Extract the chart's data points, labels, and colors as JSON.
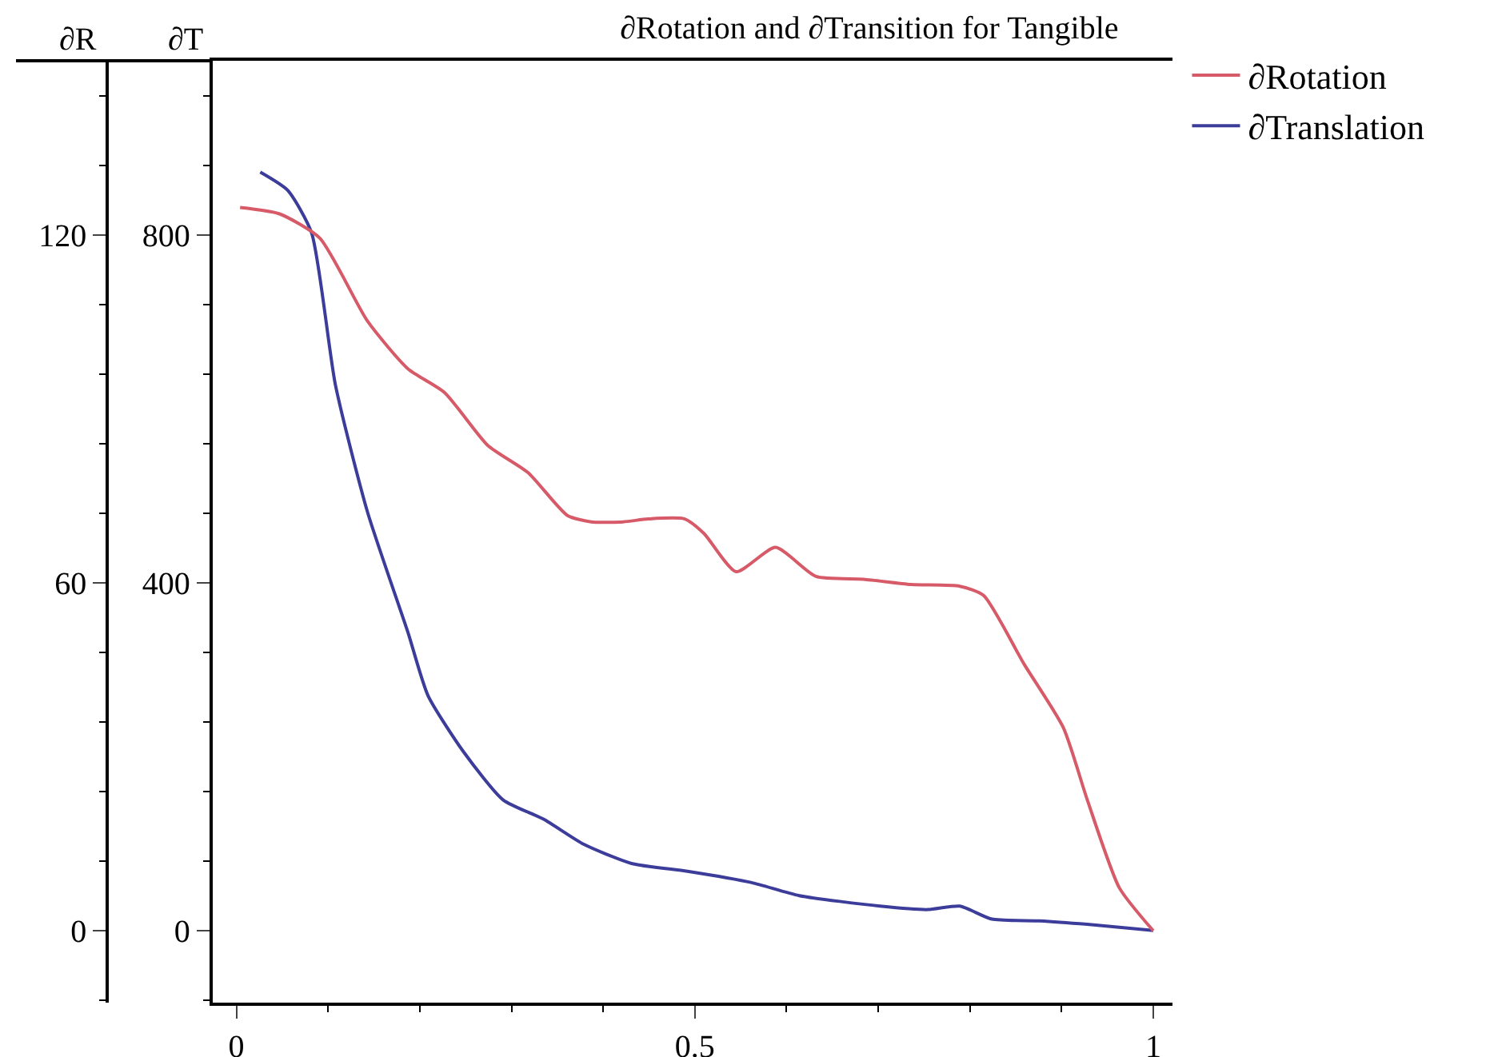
{
  "chart_data": {
    "type": "line",
    "title": "∂Rotation and ∂Transition for Tangible",
    "xlabel": null,
    "ylabel": "∂T",
    "y2label": "∂R",
    "xlim": [
      -0.026,
      1.021
    ],
    "xticks": [
      0,
      0.5,
      1
    ],
    "ylim": [
      -83,
      1000
    ],
    "yticks": [
      0,
      400,
      800
    ],
    "y2lim": [
      -12.4,
      150
    ],
    "y2ticks": [
      0,
      60,
      120
    ],
    "grid": false,
    "legend": "top right",
    "marker": "none",
    "line_style": "solid",
    "series": [
      {
        "name": "∂Rotation",
        "color": "#d65a68",
        "axis": "y2",
        "x": [
          0.004,
          0.047,
          0.091,
          0.143,
          0.187,
          0.227,
          0.274,
          0.318,
          0.361,
          0.387,
          0.422,
          0.449,
          0.489,
          0.51,
          0.545,
          0.588,
          0.632,
          0.684,
          0.736,
          0.789,
          0.815,
          0.859,
          0.902,
          0.928,
          0.963,
          1
        ],
        "values": [
          124.7,
          123.6,
          119.4,
          105.1,
          96.9,
          92.8,
          83.7,
          79,
          71.6,
          70.5,
          70.5,
          71,
          71,
          68.5,
          61.9,
          66.1,
          61.1,
          60.6,
          59.7,
          59.4,
          57.8,
          46,
          35,
          22.6,
          7.4,
          0
        ]
      },
      {
        "name": "∂Translation",
        "color": "#3c3c9a",
        "axis": "y",
        "x": [
          0.026,
          0.056,
          0.082,
          0.108,
          0.143,
          0.187,
          0.209,
          0.248,
          0.291,
          0.335,
          0.379,
          0.431,
          0.492,
          0.562,
          0.614,
          0.702,
          0.754,
          0.789,
          0.824,
          0.876,
          0.928,
          1
        ],
        "values": [
          872,
          851,
          802,
          627,
          481,
          343,
          270,
          205,
          150,
          128,
          99,
          77,
          68,
          55,
          40,
          28,
          24,
          28,
          13,
          11,
          7,
          0
        ]
      }
    ]
  }
}
